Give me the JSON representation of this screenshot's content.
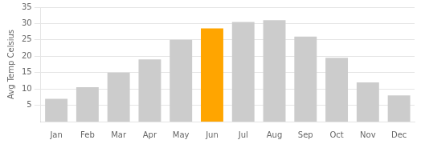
{
  "chart_data": {
    "type": "bar",
    "categories": [
      "Jan",
      "Feb",
      "Mar",
      "Apr",
      "May",
      "Jun",
      "Jul",
      "Aug",
      "Sep",
      "Oct",
      "Nov",
      "Dec"
    ],
    "values": [
      7,
      10.5,
      15,
      19,
      25,
      28.5,
      30.5,
      31,
      26,
      19.5,
      12,
      8
    ],
    "colors": [
      "#cccccc",
      "#cccccc",
      "#cccccc",
      "#cccccc",
      "#cccccc",
      "#FFA500",
      "#cccccc",
      "#cccccc",
      "#cccccc",
      "#cccccc",
      "#cccccc",
      "#cccccc"
    ],
    "ylabel": "Avg Temp Celsius",
    "ylim": [
      0,
      35
    ],
    "yticks": [
      5,
      10,
      15,
      20,
      25,
      30,
      35
    ],
    "grid": "y"
  }
}
